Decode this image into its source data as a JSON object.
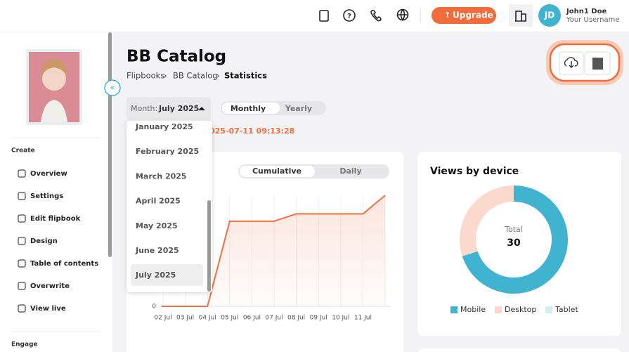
{
  "header": {
    "upgrade": "Upgrade",
    "user_initials": "JD",
    "user_name": "John1 Doe",
    "user_handle": "Your Username"
  },
  "sidebar": {
    "create_title": "Create",
    "create_items": [
      "Overview",
      "Settings",
      "Edit flipbook",
      "Design",
      "Table of contents",
      "Overwrite",
      "View live"
    ],
    "engage_title": "Engage"
  },
  "page": {
    "title": "BB Catalog",
    "breadcrumb": [
      "Flipbooks",
      "BB Catalog",
      "Statistics"
    ],
    "month_label": "Month:",
    "month_value": "July 2025",
    "period_tabs": [
      "Monthly",
      "Yearly"
    ],
    "updated": "025-07-11 09:13:28",
    "month_options": [
      "January 2025",
      "February 2025",
      "March 2025",
      "April 2025",
      "May 2025",
      "June 2025",
      "July 2025"
    ]
  },
  "chart_data": [
    {
      "type": "line",
      "tabs": [
        "Cumulative",
        "Daily"
      ],
      "categories": [
        "02 Jul",
        "03 Jul",
        "04 Jul",
        "05 Jul",
        "06 Jul",
        "07 Jul",
        "08 Jul",
        "09 Jul",
        "10 Jul",
        "11 Jul",
        null
      ],
      "series": [
        {
          "color": "#f07040",
          "values": [
            0,
            0,
            0,
            23,
            23,
            23,
            25,
            25,
            25,
            25,
            30
          ]
        }
      ],
      "ylim": [
        0,
        30
      ],
      "yticks": [
        0
      ],
      "grid": true
    },
    {
      "type": "pie",
      "title": "Views by device",
      "center_label": "Total",
      "center_value": 30,
      "categories": [
        "Mobile",
        "Desktop",
        "Tablet"
      ],
      "values": [
        21,
        9,
        0
      ],
      "colors": [
        "#3fb3cf",
        "#fbd9cc",
        "#d7ecf3"
      ]
    }
  ]
}
